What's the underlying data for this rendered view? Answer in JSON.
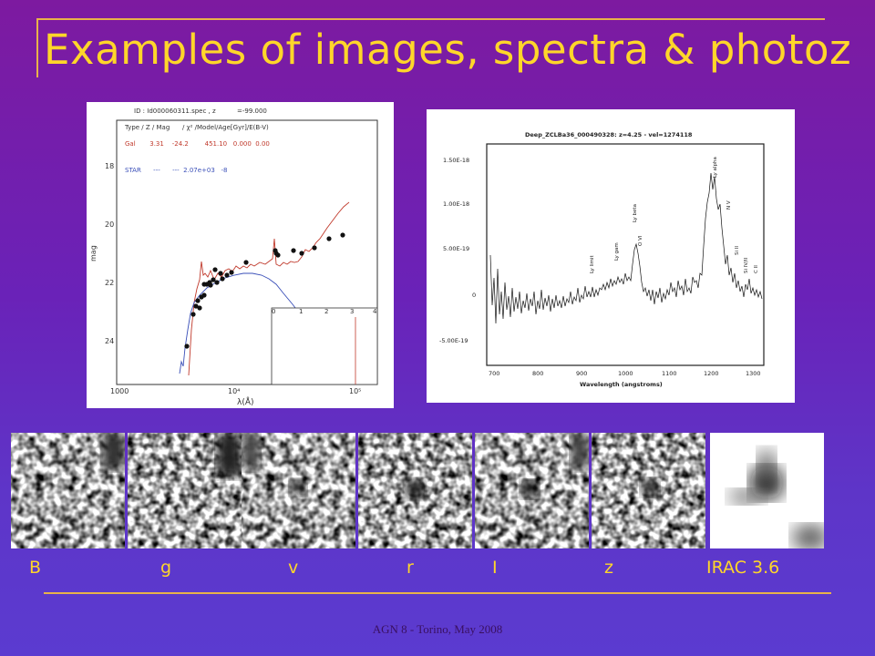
{
  "slide": {
    "title": "Examples of images, spectra & photoz",
    "footer": "AGN 8 - Torino, May 2008",
    "accent_color": "#ffd62a",
    "rule_color": "#e8b24a"
  },
  "sed_plot": {
    "header": "ID : Id000060311.spec , z",
    "header_z": "=-99.000",
    "legend_header": "Type / Z / Mag",
    "legend_header2": "/ χ² /Model/Age[Gyr]/E(B-V)",
    "row_gal": "Gal       3.31    -24.2        451.10   0.000  0.00",
    "row_star": "STAR      ---      ---  2.07e+03   -8",
    "ylabel": "mag",
    "xlabel": "λ(Å)",
    "y_ticks": [
      "18",
      "20",
      "22",
      "24"
    ],
    "x_ticks": [
      "1000",
      "10⁴",
      "10⁵"
    ],
    "inset_ticks": [
      "0",
      "1",
      "2",
      "3",
      "4"
    ]
  },
  "spectrum_plot": {
    "header": "Deep_ZCLBa36_000490328: z=4.25 - vel=1274118",
    "xlabel": "Wavelength (angstroms)",
    "x_ticks": [
      "700",
      "800",
      "900",
      "1000",
      "1100",
      "1200",
      "1300"
    ],
    "y_ticks": [
      "1.50E-18",
      "1.00E-18",
      "5.00E-19",
      "0",
      "-5.00E-19"
    ],
    "line_labels": [
      "Ly limit",
      "Ly gam",
      "Ly beta",
      "O VI",
      "Ly alpha",
      "N V",
      "Si II",
      "Si IV/II",
      "C II"
    ]
  },
  "bands": [
    {
      "label": "B"
    },
    {
      "label": "g"
    },
    {
      "label": "v"
    },
    {
      "label": "r"
    },
    {
      "label": "I"
    },
    {
      "label": "z"
    },
    {
      "label": "IRAC 3.6"
    }
  ]
}
